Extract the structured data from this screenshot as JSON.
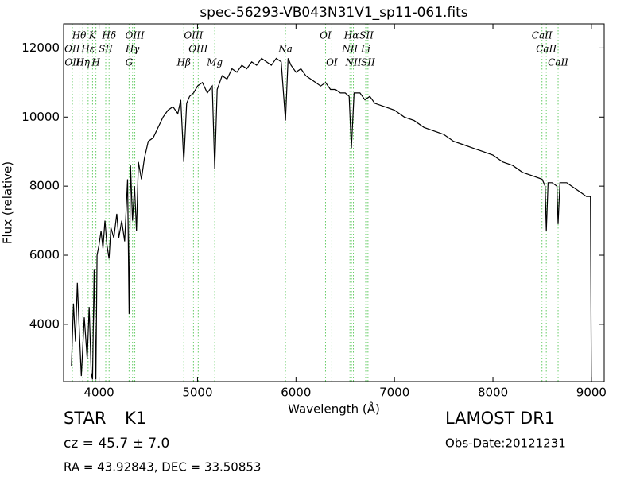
{
  "chart_data": {
    "type": "line",
    "title": "spec-56293-VB043N31V1_sp11-061.fits",
    "x_label": "Wavelength (Å)",
    "y_label": "Flux (relative)",
    "xlim": [
      3640,
      9130
    ],
    "ylim": [
      2340,
      12700
    ],
    "xticks": [
      4000,
      5000,
      6000,
      7000,
      8000,
      9000
    ],
    "yticks": [
      4000,
      6000,
      8000,
      10000,
      12000
    ],
    "series": [
      {
        "color": "#000000",
        "x": [
          3720,
          3740,
          3760,
          3780,
          3800,
          3820,
          3850,
          3880,
          3900,
          3920,
          3934,
          3950,
          3968,
          3980,
          4000,
          4020,
          4040,
          4060,
          4080,
          4102,
          4120,
          4150,
          4180,
          4200,
          4230,
          4260,
          4290,
          4305,
          4320,
          4340,
          4360,
          4380,
          4400,
          4430,
          4460,
          4500,
          4550,
          4600,
          4650,
          4700,
          4750,
          4800,
          4830,
          4861,
          4890,
          4920,
          4960,
          5000,
          5050,
          5100,
          5150,
          5175,
          5200,
          5250,
          5300,
          5350,
          5400,
          5450,
          5500,
          5550,
          5600,
          5650,
          5700,
          5750,
          5800,
          5850,
          5893,
          5920,
          5950,
          6000,
          6050,
          6100,
          6150,
          6200,
          6250,
          6300,
          6350,
          6400,
          6450,
          6500,
          6540,
          6563,
          6590,
          6650,
          6700,
          6750,
          6800,
          6900,
          7000,
          7100,
          7200,
          7300,
          7400,
          7500,
          7600,
          7700,
          7800,
          7900,
          8000,
          8100,
          8200,
          8300,
          8400,
          8500,
          8530,
          8542,
          8560,
          8600,
          8650,
          8662,
          8680,
          8750,
          8800,
          8850,
          8900,
          8950,
          8990,
          9000
        ],
        "values": [
          2800,
          4600,
          3500,
          5200,
          3800,
          2500,
          4200,
          3000,
          4500,
          2600,
          2400,
          5600,
          2400,
          6000,
          6300,
          6700,
          6200,
          7000,
          6300,
          5900,
          6800,
          6500,
          7200,
          6500,
          7000,
          6400,
          8200,
          4300,
          8600,
          7000,
          8000,
          6700,
          8700,
          8200,
          8800,
          9300,
          9400,
          9700,
          10000,
          10200,
          10300,
          10100,
          10500,
          8700,
          10400,
          10600,
          10700,
          10900,
          11000,
          10700,
          10900,
          8500,
          10800,
          11200,
          11100,
          11400,
          11300,
          11500,
          11400,
          11600,
          11500,
          11700,
          11600,
          11500,
          11700,
          11600,
          9900,
          11700,
          11500,
          11300,
          11400,
          11200,
          11100,
          11000,
          10900,
          11000,
          10800,
          10800,
          10700,
          10700,
          10600,
          9100,
          10700,
          10700,
          10500,
          10600,
          10400,
          10300,
          10200,
          10000,
          9900,
          9700,
          9600,
          9500,
          9300,
          9200,
          9100,
          9000,
          8900,
          8700,
          8600,
          8400,
          8300,
          8200,
          8000,
          6700,
          8100,
          8100,
          8000,
          6900,
          8100,
          8100,
          8000,
          7900,
          7800,
          7700,
          7700,
          2000
        ]
      }
    ],
    "lines_color": "#66cc66",
    "lines": [
      {
        "label": "Hθ",
        "wavelength": 3798
      },
      {
        "label": "K",
        "wavelength": 3934
      },
      {
        "label": "Hδ",
        "wavelength": 4102
      },
      {
        "label": "OIII",
        "wavelength": 4363
      },
      {
        "label": "OIII",
        "wavelength": 4959
      },
      {
        "label": "OI",
        "wavelength": 6300
      },
      {
        "label": "Hα",
        "wavelength": 6563
      },
      {
        "label": "SII",
        "wavelength": 6716
      },
      {
        "label": "CaII",
        "wavelength": 8498
      },
      {
        "label": "OII",
        "wavelength": 3727
      },
      {
        "label": "Hε",
        "wavelength": 3889
      },
      {
        "label": "SII",
        "wavelength": 4068
      },
      {
        "label": "Hγ",
        "wavelength": 4340
      },
      {
        "label": "OIII",
        "wavelength": 5007
      },
      {
        "label": "Na",
        "wavelength": 5893
      },
      {
        "label": "NII",
        "wavelength": 6548
      },
      {
        "label": "Li",
        "wavelength": 6708
      },
      {
        "label": "CaII",
        "wavelength": 8542
      },
      {
        "label": "OII",
        "wavelength": 3729
      },
      {
        "label": "Hη",
        "wavelength": 3835
      },
      {
        "label": "H",
        "wavelength": 3968
      },
      {
        "label": "G",
        "wavelength": 4305
      },
      {
        "label": "Hβ",
        "wavelength": 4861
      },
      {
        "label": "Mg",
        "wavelength": 5175
      },
      {
        "label": "OI",
        "wavelength": 6364
      },
      {
        "label": "NII",
        "wavelength": 6583
      },
      {
        "label": "SII",
        "wavelength": 6731
      },
      {
        "label": "CaII",
        "wavelength": 8662
      }
    ]
  },
  "info": {
    "object": "STAR",
    "subclass": "K1",
    "survey": "LAMOST DR1",
    "cz": "cz = 45.7 ± 7.0",
    "date": "Obs-Date:20121231",
    "coords": "RA = 43.92843, DEC = 33.50853"
  }
}
